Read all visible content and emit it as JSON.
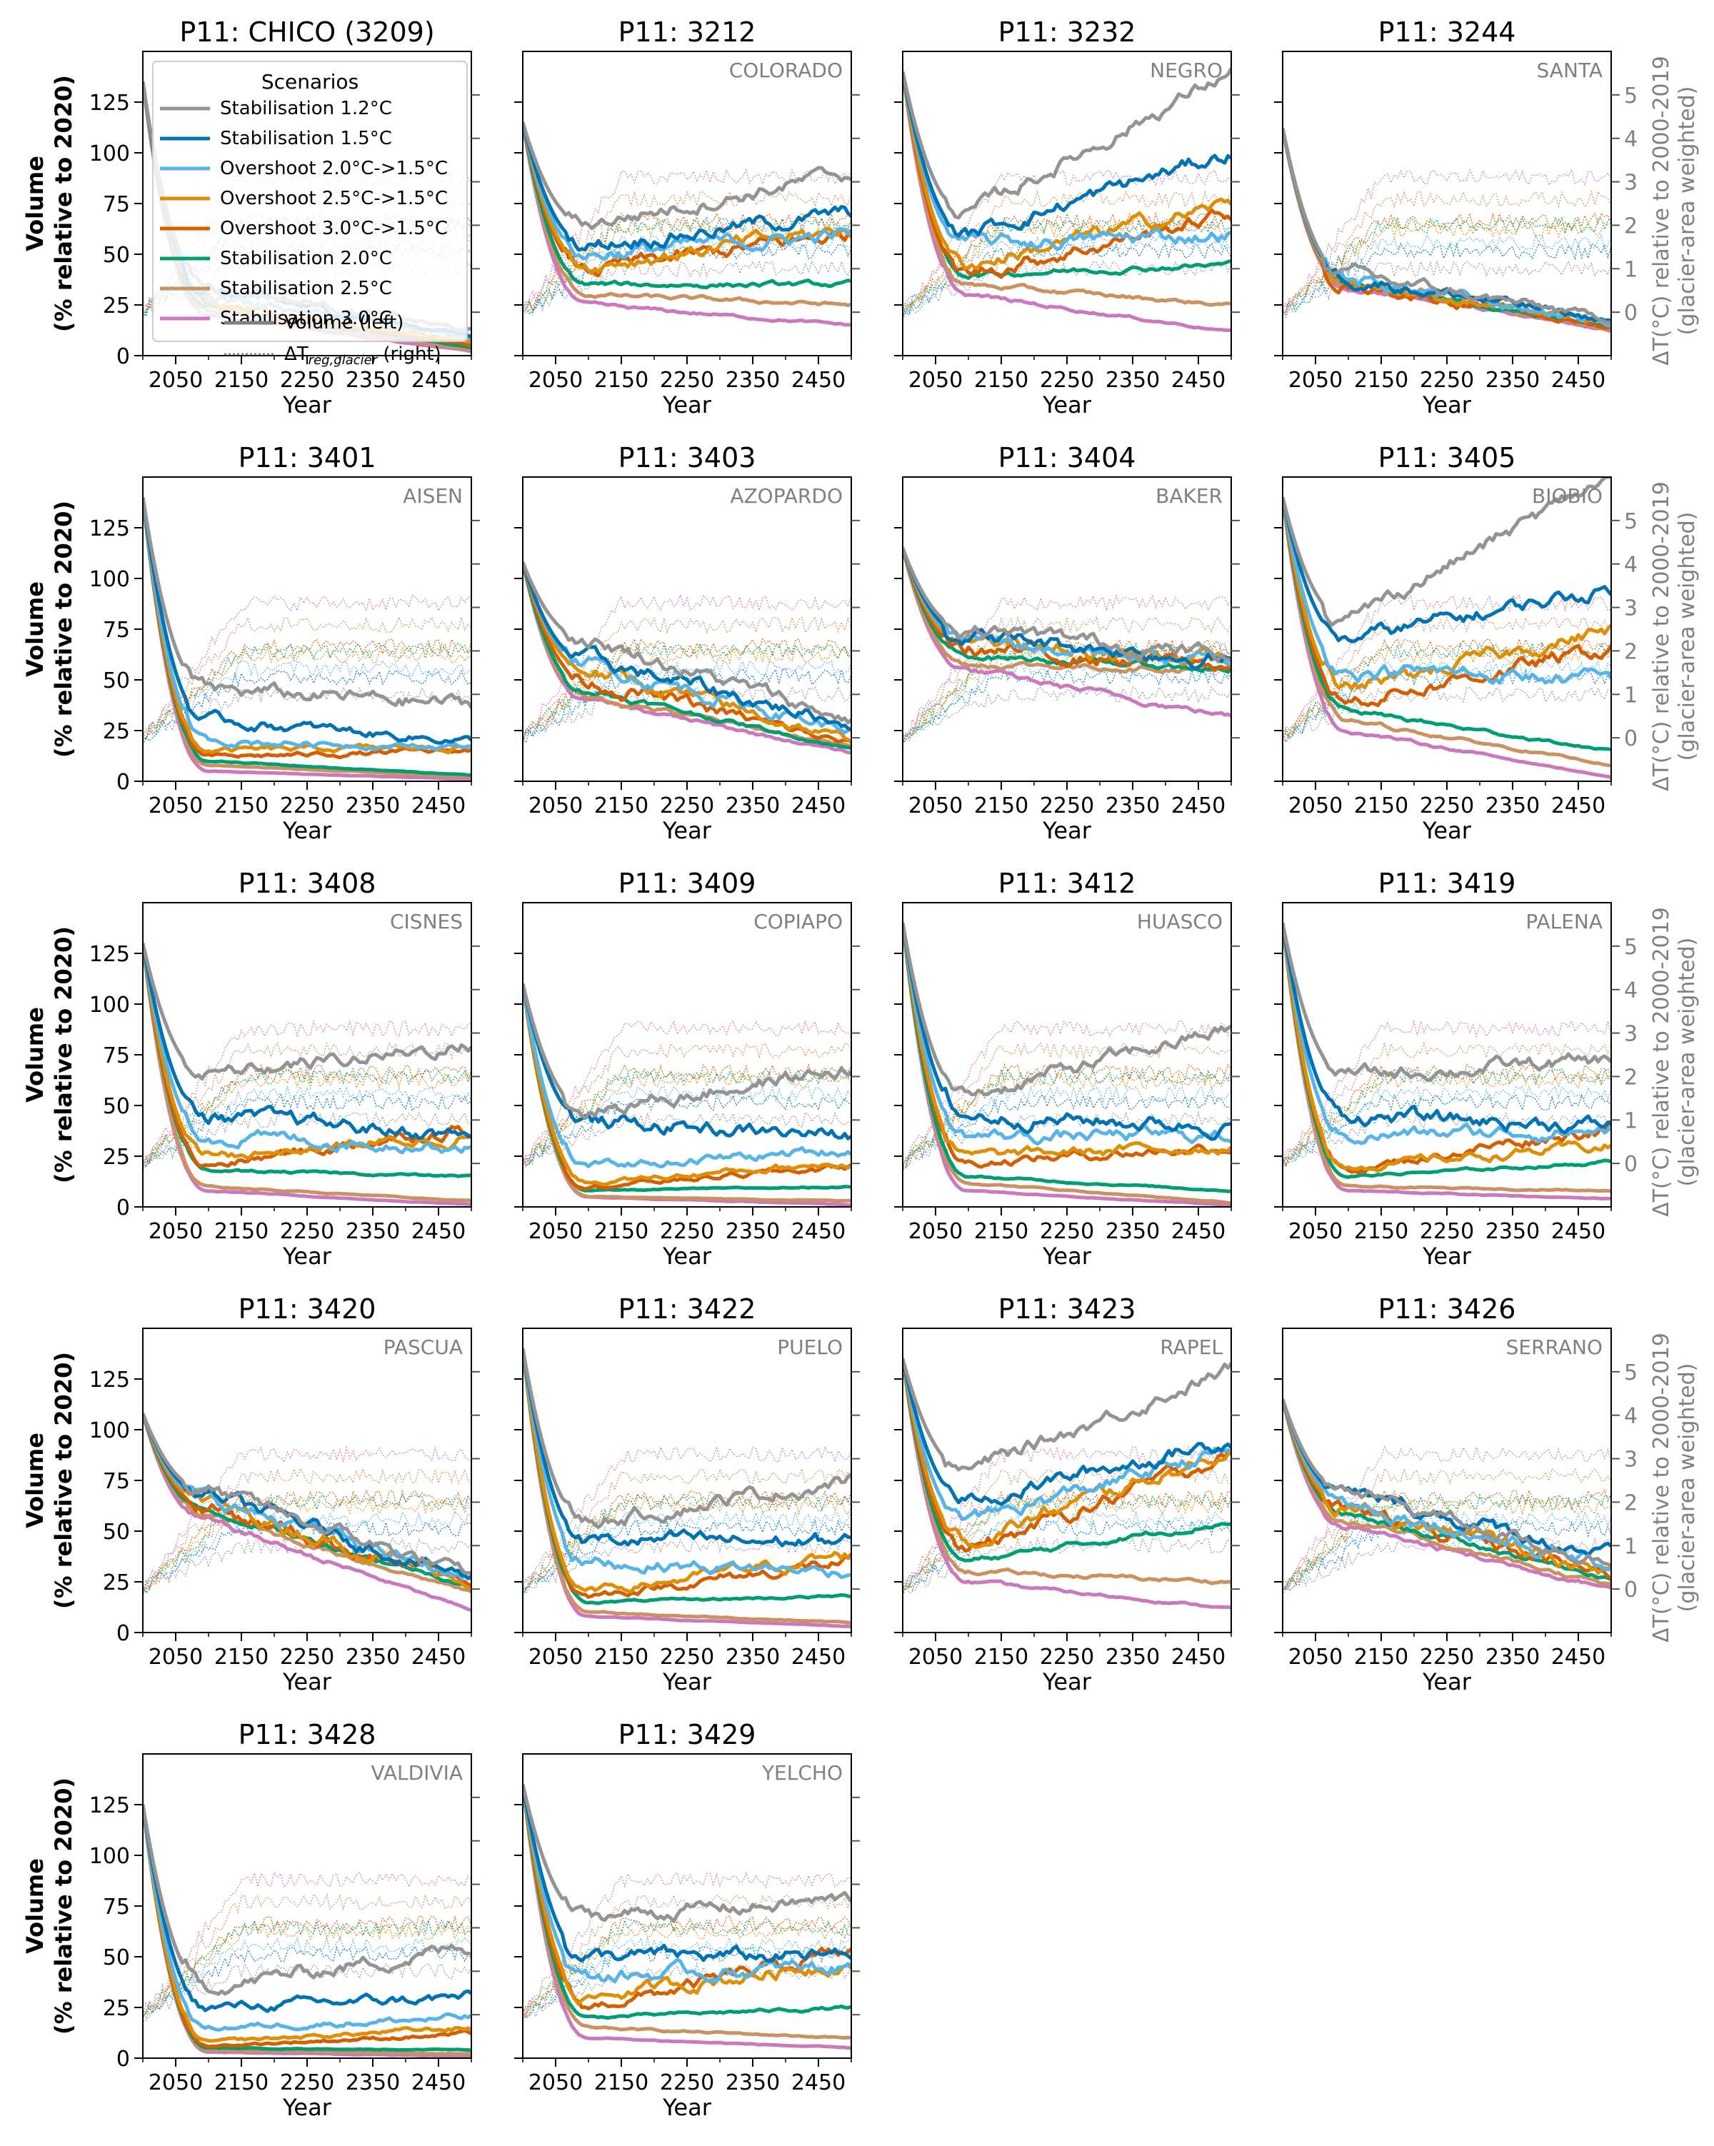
{
  "figure": {
    "x_axis_label": "Year",
    "y_axis_label_line1": "Volume",
    "y_axis_label_line2": "(% relative to 2020)",
    "right_axis_label_line1": "ΔT(°C) relative to 2000-2019",
    "right_axis_label_line2": "(glacier-area weighted)",
    "x_ticks": [
      "2050",
      "2150",
      "2250",
      "2350",
      "2450"
    ],
    "y_ticks": [
      "0",
      "25",
      "50",
      "75",
      "100",
      "125"
    ],
    "right_ticks": [
      "0",
      "1",
      "2",
      "3",
      "4",
      "5"
    ]
  },
  "legend": {
    "title": "Scenarios",
    "entries": [
      {
        "label": "Stabilisation 1.2°C",
        "color": "#949494"
      },
      {
        "label": "Stabilisation 1.5°C",
        "color": "#0173b2"
      },
      {
        "label": "Overshoot 2.0°C->1.5°C",
        "color": "#56b4e9"
      },
      {
        "label": "Overshoot 2.5°C->1.5°C",
        "color": "#de8f05"
      },
      {
        "label": "Overshoot 3.0°C->1.5°C",
        "color": "#d55e00"
      },
      {
        "label": "Stabilisation 2.0°C",
        "color": "#029e73"
      },
      {
        "label": "Stabilisation 2.5°C",
        "color": "#ca9161"
      },
      {
        "label": "Stabilisation 3.0°C",
        "color": "#cc78bc"
      }
    ],
    "style_entries": [
      {
        "label": "Volume (left)",
        "style": "solid"
      },
      {
        "label_main": "ΔT",
        "label_sub": "reg,glacier",
        "label_tail": " (right)",
        "style": "dotted"
      }
    ]
  },
  "chart_data": [
    {
      "title": "P11: CHICO (3209)",
      "region": "",
      "volume_2500": [
        12,
        10,
        8,
        6,
        5,
        4,
        3,
        2
      ],
      "volume_2100": [
        35,
        32,
        30,
        28,
        26,
        24,
        22,
        20
      ],
      "volume_2500_shape": "decline",
      "temp_shift": 0
    },
    {
      "title": "P11: 3212",
      "region": "COLORADO",
      "volume_2500": [
        90,
        70,
        60,
        62,
        60,
        35,
        25,
        15
      ],
      "volume_2100": [
        65,
        55,
        50,
        45,
        42,
        35,
        30,
        25
      ],
      "temp_shift": 0
    },
    {
      "title": "P11: 3232",
      "region": "NEGRO",
      "volume_2500": [
        140,
        100,
        60,
        75,
        70,
        45,
        25,
        12
      ],
      "volume_2100": [
        70,
        60,
        55,
        45,
        40,
        40,
        35,
        30
      ],
      "temp_shift": 0
    },
    {
      "title": "P11: 3244",
      "region": "SANTA",
      "volume_2500": [
        18,
        17,
        16,
        15,
        14,
        14,
        13,
        12
      ],
      "volume_2100": [
        40,
        39,
        38,
        37,
        36,
        36,
        35,
        34
      ],
      "temp_shift": 0
    },
    {
      "title": "P11: 3401",
      "region": "AISEN",
      "volume_2500": [
        38,
        20,
        17,
        17,
        15,
        3,
        2,
        1
      ],
      "volume_2100": [
        45,
        30,
        20,
        15,
        12,
        10,
        8,
        5
      ],
      "temp_shift": 0
    },
    {
      "title": "P11: 3403",
      "region": "AZOPARDO",
      "volume_2500": [
        30,
        28,
        25,
        20,
        18,
        16,
        17,
        14
      ],
      "volume_2100": [
        70,
        60,
        58,
        55,
        50,
        45,
        42,
        40
      ],
      "temp_shift": 0
    },
    {
      "title": "P11: 3404",
      "region": "BAKER",
      "volume_2500": [
        62,
        60,
        58,
        60,
        57,
        55,
        55,
        32
      ],
      "volume_2100": [
        75,
        72,
        70,
        68,
        65,
        62,
        58,
        55
      ],
      "temp_shift": 0
    },
    {
      "title": "P11: 3405",
      "region": "BIOBIO",
      "volume_2500": [
        150,
        95,
        50,
        75,
        65,
        15,
        8,
        2
      ],
      "volume_2100": [
        80,
        70,
        55,
        45,
        40,
        35,
        30,
        25
      ],
      "temp_shift": 0
    },
    {
      "title": "P11: 3408",
      "region": "CISNES",
      "volume_2500": [
        80,
        35,
        30,
        35,
        40,
        15,
        3,
        1
      ],
      "volume_2100": [
        65,
        45,
        35,
        25,
        20,
        18,
        10,
        8
      ],
      "temp_shift": 0
    },
    {
      "title": "P11: 3409",
      "region": "COPIAPO",
      "volume_2500": [
        68,
        35,
        28,
        22,
        20,
        10,
        3,
        1
      ],
      "volume_2100": [
        48,
        42,
        20,
        12,
        10,
        8,
        5,
        5
      ],
      "temp_shift": 0
    },
    {
      "title": "P11: 3412",
      "region": "HUASCO",
      "volume_2500": [
        88,
        40,
        35,
        30,
        30,
        8,
        2,
        1
      ],
      "volume_2100": [
        55,
        45,
        35,
        25,
        22,
        15,
        12,
        8
      ],
      "temp_shift": 0
    },
    {
      "title": "P11: 3419",
      "region": "PALENA",
      "volume_2500": [
        72,
        40,
        38,
        30,
        40,
        22,
        8,
        4
      ],
      "volume_2100": [
        65,
        45,
        35,
        20,
        18,
        15,
        10,
        8
      ],
      "temp_shift": 0
    },
    {
      "title": "P11: 3420",
      "region": "PASCUA",
      "volume_2500": [
        28,
        27,
        26,
        25,
        24,
        23,
        20,
        11
      ],
      "volume_2100": [
        70,
        68,
        66,
        64,
        62,
        60,
        58,
        55
      ],
      "temp_shift": 0
    },
    {
      "title": "P11: 3422",
      "region": "PUELO",
      "volume_2500": [
        75,
        45,
        30,
        38,
        35,
        18,
        5,
        3
      ],
      "volume_2100": [
        55,
        45,
        35,
        20,
        18,
        15,
        10,
        8
      ],
      "temp_shift": 0
    },
    {
      "title": "P11: 3423",
      "region": "RAPEL",
      "volume_2500": [
        130,
        95,
        90,
        90,
        88,
        55,
        25,
        12
      ],
      "volume_2100": [
        80,
        65,
        55,
        45,
        40,
        35,
        30,
        25
      ],
      "temp_shift": 0
    },
    {
      "title": "P11: 3426",
      "region": "SERRANO",
      "volume_2500": [
        35,
        38,
        32,
        30,
        28,
        27,
        23,
        22
      ],
      "volume_2100": [
        70,
        68,
        65,
        62,
        60,
        58,
        55,
        52
      ],
      "temp_shift": 0
    },
    {
      "title": "P11: 3428",
      "region": "VALDIVIA",
      "volume_2500": [
        55,
        30,
        20,
        15,
        12,
        4,
        2,
        1
      ],
      "volume_2100": [
        35,
        25,
        15,
        8,
        6,
        5,
        4,
        3
      ],
      "temp_shift": 0
    },
    {
      "title": "P11: 3429",
      "region": "YELCHO",
      "volume_2500": [
        78,
        50,
        45,
        48,
        52,
        25,
        10,
        5
      ],
      "volume_2100": [
        70,
        50,
        40,
        30,
        25,
        20,
        15,
        10
      ],
      "temp_shift": 0
    }
  ],
  "panel_start_values": [
    135,
    115,
    140,
    112,
    140,
    108,
    115,
    140,
    130,
    110,
    140,
    140,
    108,
    140,
    135,
    115,
    125,
    135
  ],
  "year_range": [
    2000,
    2500
  ],
  "volume_ylim": [
    0,
    150
  ],
  "temp_ylim": [
    -1,
    6
  ]
}
